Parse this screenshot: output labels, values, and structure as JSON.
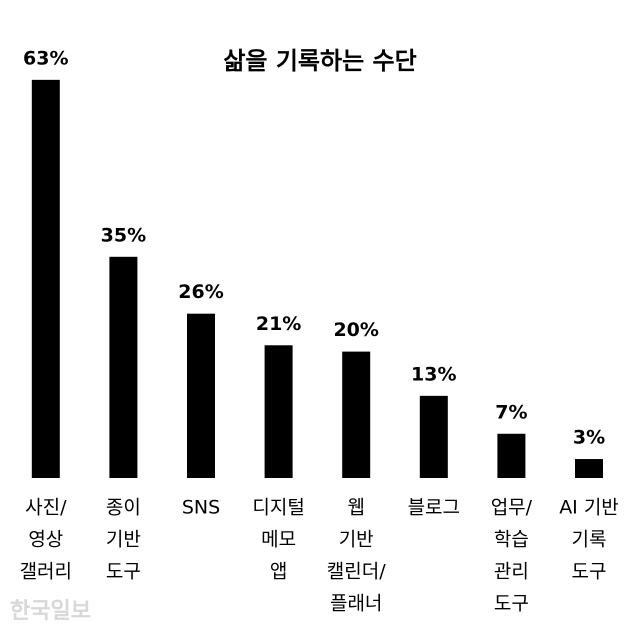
{
  "chart_data": {
    "type": "bar",
    "title": "삶을 기록하는 수단",
    "categories": [
      [
        "사진/",
        "영상",
        "갤러리"
      ],
      [
        "종이",
        "기반",
        "도구"
      ],
      [
        "SNS"
      ],
      [
        "디지털",
        "메모",
        "앱"
      ],
      [
        "웹",
        "기반",
        "캘린더/",
        "플래너"
      ],
      [
        "블로그"
      ],
      [
        "업무/",
        "학습",
        "관리",
        "도구"
      ],
      [
        "AI 기반",
        "기록",
        "도구"
      ]
    ],
    "values": [
      63,
      35,
      26,
      21,
      20,
      13,
      7,
      3
    ],
    "value_labels": [
      "63%",
      "35%",
      "26%",
      "21%",
      "20%",
      "13%",
      "7%",
      "3%"
    ],
    "color": "#000000",
    "watermark": "한국일보"
  }
}
